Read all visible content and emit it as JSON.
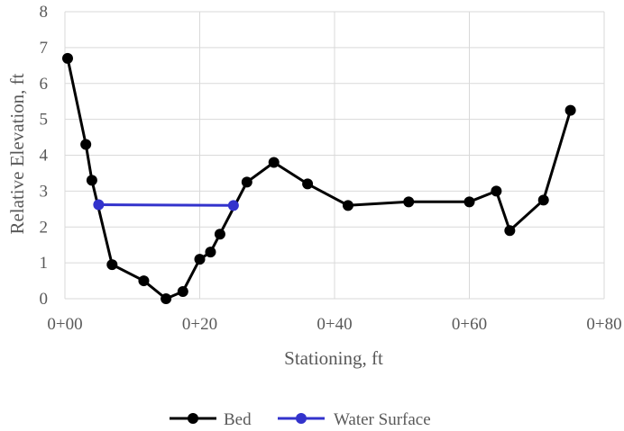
{
  "chart_data": {
    "type": "line",
    "title": "",
    "xlabel": "Stationing, ft",
    "ylabel": "Relative Elevation, ft",
    "xlim": [
      0,
      80
    ],
    "ylim": [
      0,
      8
    ],
    "x_ticks": [
      0,
      20,
      40,
      60,
      80
    ],
    "x_tick_labels": [
      "0+00",
      "0+20",
      "0+40",
      "0+60",
      "0+80"
    ],
    "y_ticks": [
      0,
      1,
      2,
      3,
      4,
      5,
      6,
      7,
      8
    ],
    "y_tick_labels": [
      "0",
      "1",
      "2",
      "3",
      "4",
      "5",
      "6",
      "7",
      "8"
    ],
    "grid": true,
    "legend_position": "bottom",
    "series": [
      {
        "name": "Bed",
        "color": "#000000",
        "marker": "circle",
        "points": [
          [
            0.4,
            6.7
          ],
          [
            3.1,
            4.3
          ],
          [
            4.0,
            3.3
          ],
          [
            7.0,
            0.95
          ],
          [
            11.7,
            0.5
          ],
          [
            15.0,
            0.0
          ],
          [
            17.5,
            0.2
          ],
          [
            20.0,
            1.1
          ],
          [
            21.6,
            1.3
          ],
          [
            23.0,
            1.8
          ],
          [
            27.0,
            3.25
          ],
          [
            31.0,
            3.8
          ],
          [
            36.0,
            3.2
          ],
          [
            42.0,
            2.6
          ],
          [
            51.0,
            2.7
          ],
          [
            60.0,
            2.7
          ],
          [
            64.0,
            3.0
          ],
          [
            66.0,
            1.9
          ],
          [
            71.0,
            2.75
          ],
          [
            75.0,
            5.25
          ]
        ]
      },
      {
        "name": "Water Surface",
        "color": "#3333cc",
        "marker": "circle",
        "points": [
          [
            5.0,
            2.62
          ],
          [
            25.0,
            2.6
          ]
        ]
      }
    ]
  }
}
